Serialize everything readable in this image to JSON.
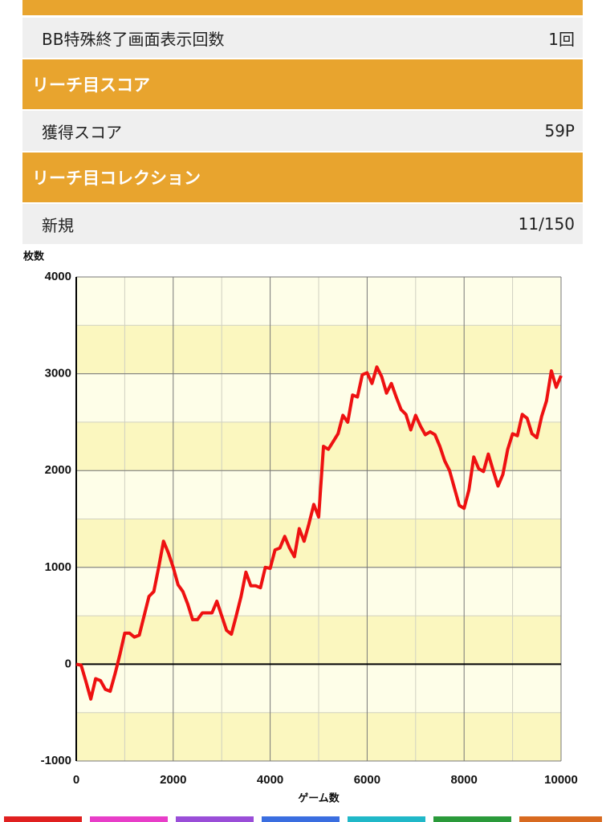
{
  "rows": [
    {
      "label": "BB特殊終了画面表示回数",
      "value": "1回"
    }
  ],
  "sections": [
    {
      "title": "リーチ目スコア",
      "rows": [
        {
          "label": "獲得スコア",
          "value": "59P"
        }
      ]
    },
    {
      "title": "リーチ目コレクション",
      "rows": [
        {
          "label": "新規",
          "value": "11/150"
        }
      ]
    }
  ],
  "chart_data": {
    "type": "line",
    "ylabel": "枚数",
    "xlabel": "ゲーム数",
    "color": "#ee1111",
    "grid": true,
    "x": [
      0,
      100,
      200,
      300,
      400,
      500,
      600,
      700,
      800,
      900,
      1000,
      1100,
      1200,
      1300,
      1400,
      1500,
      1600,
      1700,
      1800,
      1900,
      2000,
      2100,
      2200,
      2300,
      2400,
      2500,
      2600,
      2700,
      2800,
      2900,
      3000,
      3100,
      3200,
      3300,
      3400,
      3500,
      3600,
      3700,
      3800,
      3900,
      4000,
      4100,
      4200,
      4300,
      4400,
      4500,
      4600,
      4700,
      4800,
      4900,
      5000,
      5100,
      5200,
      5300,
      5400,
      5500,
      5600,
      5700,
      5800,
      5900,
      6000,
      6100,
      6200,
      6300,
      6400,
      6500,
      6600,
      6700,
      6800,
      6900,
      7000,
      7100,
      7200,
      7300,
      7400,
      7500,
      7600,
      7700,
      7800,
      7900,
      8000,
      8100,
      8200,
      8300,
      8400,
      8500,
      8600,
      8700,
      8800,
      8900,
      9000,
      9100,
      9200,
      9300,
      9400,
      9500,
      9600,
      9700,
      9800,
      9900,
      10000
    ],
    "values": [
      0,
      -10,
      -180,
      -360,
      -150,
      -170,
      -260,
      -280,
      -100,
      100,
      320,
      320,
      280,
      300,
      500,
      700,
      750,
      1000,
      1270,
      1150,
      1000,
      820,
      750,
      620,
      460,
      460,
      530,
      530,
      530,
      650,
      500,
      350,
      310,
      500,
      700,
      950,
      810,
      810,
      790,
      1000,
      990,
      1180,
      1200,
      1320,
      1200,
      1110,
      1400,
      1270,
      1450,
      1650,
      1520,
      2250,
      2220,
      2300,
      2380,
      2570,
      2500,
      2780,
      2760,
      2990,
      3010,
      2900,
      3070,
      2970,
      2800,
      2900,
      2760,
      2630,
      2580,
      2420,
      2570,
      2460,
      2370,
      2400,
      2370,
      2250,
      2100,
      2000,
      1820,
      1640,
      1610,
      1800,
      2140,
      2020,
      1990,
      2170,
      2000,
      1840,
      1960,
      2220,
      2380,
      2360,
      2580,
      2540,
      2380,
      2340,
      2560,
      2720,
      3030,
      2860,
      2980
    ],
    "xlim": [
      0,
      10000
    ],
    "xticks": [
      0,
      2000,
      4000,
      6000,
      8000,
      10000
    ],
    "ylim": [
      -1000,
      4000
    ],
    "yticks": [
      -1000,
      0,
      1000,
      2000,
      3000,
      4000
    ]
  }
}
